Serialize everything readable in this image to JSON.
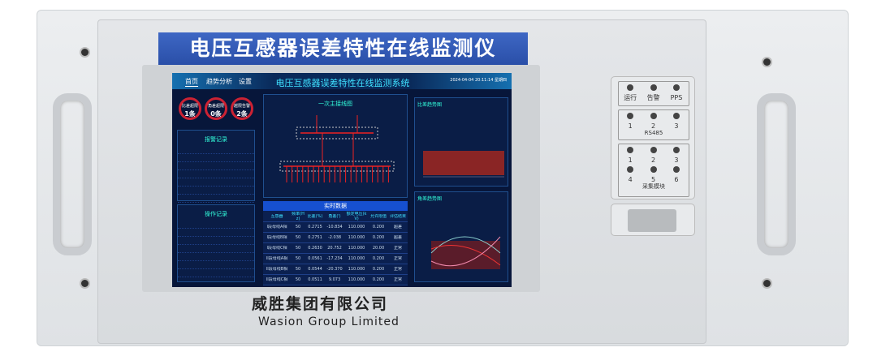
{
  "device": {
    "banner": "电压互感器误差特性在线监测仪",
    "company_cn": "威胜集团有限公司",
    "company_en": "Wasion Group Limited"
  },
  "screen": {
    "nav": [
      "首页",
      "趋势分析",
      "设置"
    ],
    "title": "电压互感器误差特性在线监测系统",
    "datetime": "2024-04-04 20:11:14 星期四",
    "gauges": [
      {
        "label": "比差超限",
        "value": "1条"
      },
      {
        "label": "角差超限",
        "value": "0条"
      },
      {
        "label": "越限告警",
        "value": "2条"
      }
    ],
    "alarm_title": "报警记录",
    "op_title": "操作记录",
    "diagram_title": "一次主接线图",
    "table_title": "实时数据",
    "table_headers": [
      "互感器",
      "频率(Hz)",
      "比差(%)",
      "角差(')",
      "额定电压(kV)",
      "允许限值",
      "评估结果"
    ],
    "table_rows": [
      [
        "I段母线A相",
        "50",
        "0.2715",
        "-10.834",
        "110.000",
        "0.200",
        "超差"
      ],
      [
        "I段母线B相",
        "50",
        "0.2751",
        "-2.038",
        "110.000",
        "0.200",
        "超差"
      ],
      [
        "I段母线C相",
        "50",
        "0.2630",
        "20.752",
        "110.000",
        "20.00",
        "正常"
      ],
      [
        "II段母线A相",
        "50",
        "0.0561",
        "-17.234",
        "110.000",
        "0.200",
        "正常"
      ],
      [
        "II段母线B相",
        "50",
        "0.0544",
        "-20.370",
        "110.000",
        "0.200",
        "正常"
      ],
      [
        "II段母线C相",
        "50",
        "0.0511",
        "9.073",
        "110.000",
        "0.200",
        "正常"
      ]
    ],
    "chart1_title": "比差趋势图",
    "chart2_title": "角差趋势图"
  },
  "leds": {
    "status": [
      "运行",
      "告警",
      "PPS"
    ],
    "rs485_label": "RS485",
    "rs485": [
      "1",
      "2",
      "3"
    ],
    "module_label": "采集模块",
    "module": [
      "1",
      "2",
      "3",
      "4",
      "5",
      "6"
    ]
  }
}
